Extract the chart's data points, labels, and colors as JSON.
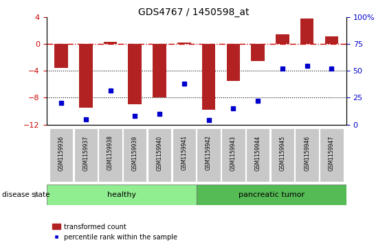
{
  "title": "GDS4767 / 1450598_at",
  "samples": [
    "GSM1159936",
    "GSM1159937",
    "GSM1159938",
    "GSM1159939",
    "GSM1159940",
    "GSM1159941",
    "GSM1159942",
    "GSM1159943",
    "GSM1159944",
    "GSM1159945",
    "GSM1159946",
    "GSM1159947"
  ],
  "red_values": [
    -3.5,
    -9.5,
    0.4,
    -9.0,
    -8.0,
    0.3,
    -9.8,
    -5.5,
    -2.5,
    1.5,
    3.8,
    1.2
  ],
  "blue_percentiles": [
    20,
    5,
    32,
    8,
    10,
    38,
    4,
    15,
    22,
    52,
    55,
    52
  ],
  "ylim_left": [
    -12,
    4
  ],
  "ylim_right": [
    0,
    100
  ],
  "yticks_left": [
    -12,
    -8,
    -4,
    0,
    4
  ],
  "yticks_right": [
    0,
    25,
    50,
    75,
    100
  ],
  "bar_color": "#B22222",
  "dot_color": "#0000CC",
  "zero_line_color": "#CC0000",
  "grid_line_color": "#000000",
  "tick_color_left": "#CC0000",
  "tick_color_right": "#0000CC",
  "healthy_color": "#90EE90",
  "tumor_color": "#55BB55",
  "cell_color": "#C8C8C8",
  "disease_state_label": "disease state",
  "healthy_label": "healthy",
  "tumor_label": "pancreatic tumor",
  "legend_red": "transformed count",
  "legend_blue": "percentile rank within the sample"
}
